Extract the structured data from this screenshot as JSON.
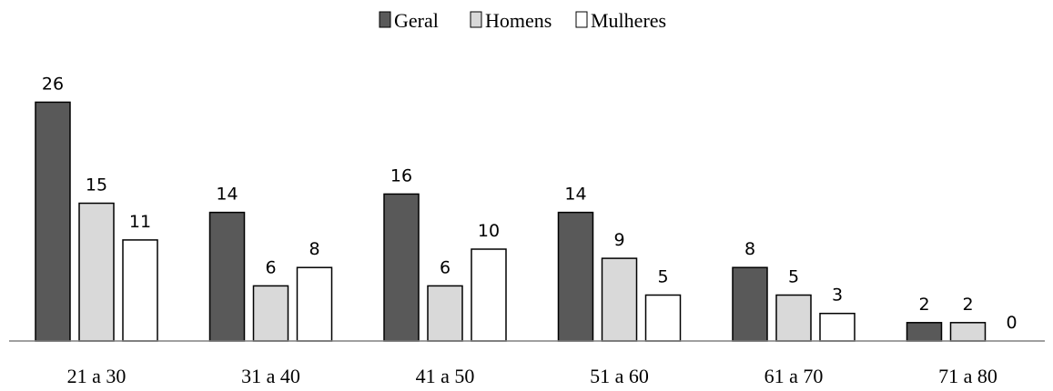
{
  "chart_data": {
    "type": "bar",
    "title": "",
    "xlabel": "",
    "ylabel": "",
    "ylim": [
      0,
      26
    ],
    "grid": false,
    "legend_position": "top-center",
    "categories": [
      "21 a 30",
      "31 a 40",
      "41 a 50",
      "51 a 60",
      "61 a 70",
      "71 a 80"
    ],
    "series": [
      {
        "name": "Geral",
        "values": [
          26,
          14,
          16,
          14,
          8,
          2
        ],
        "color": "#595959"
      },
      {
        "name": "Homens",
        "values": [
          15,
          6,
          6,
          9,
          5,
          2
        ],
        "color": "#d9d9d9"
      },
      {
        "name": "Mulheres",
        "values": [
          11,
          8,
          10,
          5,
          3,
          0
        ],
        "color": "#ffffff"
      }
    ],
    "data_labels": true
  }
}
